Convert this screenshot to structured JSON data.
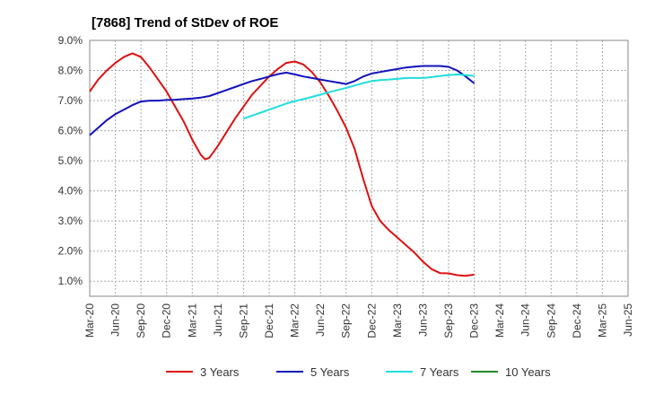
{
  "chart_data": {
    "type": "line",
    "title": "[7868]  Trend of StDev of ROE",
    "xlabel": "",
    "ylabel": "",
    "ylim": [
      0.5,
      9.0
    ],
    "yticks": [
      1.0,
      2.0,
      3.0,
      4.0,
      5.0,
      6.0,
      7.0,
      8.0,
      9.0
    ],
    "ytick_labels": [
      "1.0%",
      "2.0%",
      "3.0%",
      "4.0%",
      "5.0%",
      "6.0%",
      "7.0%",
      "8.0%",
      "9.0%"
    ],
    "x_tick_labels": [
      "Mar-20",
      "Jun-20",
      "Sep-20",
      "Dec-20",
      "Mar-21",
      "Jun-21",
      "Sep-21",
      "Dec-21",
      "Mar-22",
      "Jun-22",
      "Sep-22",
      "Dec-22",
      "Mar-23",
      "Jun-23",
      "Sep-23",
      "Dec-23",
      "Mar-24",
      "Jun-24",
      "Sep-24",
      "Dec-24",
      "Mar-25",
      "Jun-25"
    ],
    "grid": true,
    "legend_position": "bottom",
    "series": [
      {
        "name": "3 Years",
        "color": "#dd1111",
        "points": [
          [
            0,
            7.3
          ],
          [
            1,
            7.7
          ],
          [
            2,
            8.0
          ],
          [
            3,
            8.25
          ],
          [
            4,
            8.45
          ],
          [
            5,
            8.57
          ],
          [
            6,
            8.45
          ],
          [
            7,
            8.1
          ],
          [
            8,
            7.7
          ],
          [
            9,
            7.3
          ],
          [
            10,
            6.8
          ],
          [
            11,
            6.3
          ],
          [
            12,
            5.7
          ],
          [
            13,
            5.2
          ],
          [
            13.5,
            5.05
          ],
          [
            14,
            5.1
          ],
          [
            15,
            5.5
          ],
          [
            16,
            5.95
          ],
          [
            17,
            6.4
          ],
          [
            18,
            6.8
          ],
          [
            19,
            7.2
          ],
          [
            20,
            7.5
          ],
          [
            21,
            7.8
          ],
          [
            22,
            8.05
          ],
          [
            23,
            8.25
          ],
          [
            24,
            8.3
          ],
          [
            25,
            8.2
          ],
          [
            26,
            7.95
          ],
          [
            27,
            7.6
          ],
          [
            28,
            7.15
          ],
          [
            29,
            6.65
          ],
          [
            30,
            6.1
          ],
          [
            31,
            5.4
          ],
          [
            32,
            4.4
          ],
          [
            33,
            3.5
          ],
          [
            34,
            3.0
          ],
          [
            35,
            2.7
          ],
          [
            36,
            2.45
          ],
          [
            37,
            2.2
          ],
          [
            38,
            1.95
          ],
          [
            39,
            1.65
          ],
          [
            40,
            1.4
          ],
          [
            41,
            1.27
          ],
          [
            42,
            1.26
          ],
          [
            43,
            1.2
          ],
          [
            44,
            1.18
          ],
          [
            45,
            1.22
          ]
        ]
      },
      {
        "name": "5 Years",
        "color": "#1111bb",
        "points": [
          [
            0,
            5.85
          ],
          [
            1,
            6.1
          ],
          [
            2,
            6.35
          ],
          [
            3,
            6.55
          ],
          [
            4,
            6.7
          ],
          [
            5,
            6.85
          ],
          [
            6,
            6.97
          ],
          [
            7,
            7.0
          ],
          [
            8,
            7.0
          ],
          [
            9,
            7.02
          ],
          [
            10,
            7.03
          ],
          [
            11,
            7.05
          ],
          [
            12,
            7.07
          ],
          [
            13,
            7.1
          ],
          [
            14,
            7.15
          ],
          [
            15,
            7.25
          ],
          [
            16,
            7.35
          ],
          [
            17,
            7.45
          ],
          [
            18,
            7.55
          ],
          [
            19,
            7.65
          ],
          [
            20,
            7.72
          ],
          [
            21,
            7.8
          ],
          [
            22,
            7.88
          ],
          [
            23,
            7.93
          ],
          [
            24,
            7.87
          ],
          [
            25,
            7.8
          ],
          [
            26,
            7.75
          ],
          [
            27,
            7.7
          ],
          [
            28,
            7.65
          ],
          [
            29,
            7.6
          ],
          [
            30,
            7.55
          ],
          [
            31,
            7.65
          ],
          [
            32,
            7.8
          ],
          [
            33,
            7.9
          ],
          [
            34,
            7.95
          ],
          [
            35,
            8.0
          ],
          [
            36,
            8.05
          ],
          [
            37,
            8.1
          ],
          [
            38,
            8.13
          ],
          [
            39,
            8.15
          ],
          [
            40,
            8.15
          ],
          [
            41,
            8.15
          ],
          [
            42,
            8.12
          ],
          [
            43,
            8.0
          ],
          [
            44,
            7.8
          ],
          [
            45,
            7.57
          ]
        ]
      },
      {
        "name": "7 Years",
        "color": "#22dddd",
        "points": [
          [
            18,
            6.4
          ],
          [
            19,
            6.5
          ],
          [
            20,
            6.6
          ],
          [
            21,
            6.7
          ],
          [
            22,
            6.8
          ],
          [
            23,
            6.9
          ],
          [
            24,
            6.98
          ],
          [
            25,
            7.05
          ],
          [
            26,
            7.12
          ],
          [
            27,
            7.2
          ],
          [
            28,
            7.28
          ],
          [
            29,
            7.35
          ],
          [
            30,
            7.42
          ],
          [
            31,
            7.5
          ],
          [
            32,
            7.58
          ],
          [
            33,
            7.65
          ],
          [
            34,
            7.68
          ],
          [
            35,
            7.7
          ],
          [
            36,
            7.72
          ],
          [
            37,
            7.75
          ],
          [
            38,
            7.75
          ],
          [
            39,
            7.75
          ],
          [
            40,
            7.78
          ],
          [
            41,
            7.82
          ],
          [
            42,
            7.85
          ],
          [
            43,
            7.87
          ],
          [
            44,
            7.85
          ],
          [
            45,
            7.82
          ]
        ]
      },
      {
        "name": "10 Years",
        "color": "#228822",
        "points": []
      }
    ]
  }
}
